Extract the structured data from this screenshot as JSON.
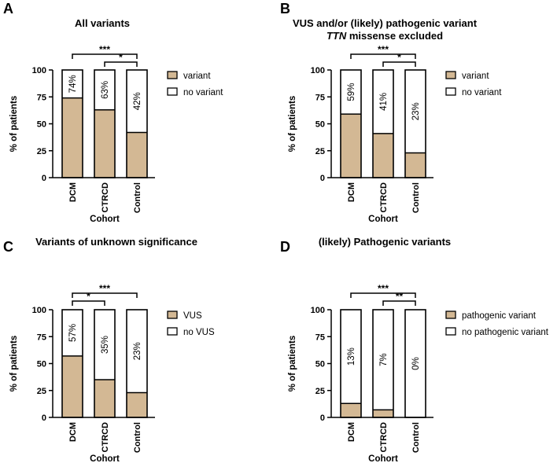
{
  "colors": {
    "variant": "#d3b894",
    "none": "#ffffff",
    "stroke": "#000000"
  },
  "chart_data": [
    {
      "type": "bar",
      "stacked": true,
      "panel": "A",
      "title_lines": [
        "All variants"
      ],
      "categories": [
        "DCM",
        "CTRCD",
        "Control"
      ],
      "series": [
        {
          "name": "variant",
          "values": [
            74,
            63,
            42
          ]
        },
        {
          "name": "no variant",
          "values": [
            26,
            37,
            58
          ]
        }
      ],
      "data_labels": [
        "74%",
        "63%",
        "42%"
      ],
      "xlabel": "Cohort",
      "ylabel": "% of patients",
      "ylim": [
        0,
        100
      ],
      "yticks": [
        0,
        25,
        50,
        75,
        100
      ],
      "legend": [
        "variant",
        "no variant"
      ],
      "legend_position": "right",
      "significance": [
        {
          "from": 0,
          "to": 2,
          "label": "***"
        },
        {
          "from": 1,
          "to": 2,
          "label": "*"
        }
      ]
    },
    {
      "type": "bar",
      "stacked": true,
      "panel": "B",
      "title_lines": [
        "VUS and/or (likely) pathogenic variant",
        "TTN missense excluded"
      ],
      "title_italic_word": "TTN",
      "categories": [
        "DCM",
        "CTRCD",
        "Control"
      ],
      "series": [
        {
          "name": "variant",
          "values": [
            59,
            41,
            23
          ]
        },
        {
          "name": "no variant",
          "values": [
            41,
            59,
            77
          ]
        }
      ],
      "data_labels": [
        "59%",
        "41%",
        "23%"
      ],
      "xlabel": "Cohort",
      "ylabel": "% of patients",
      "ylim": [
        0,
        100
      ],
      "yticks": [
        0,
        25,
        50,
        75,
        100
      ],
      "legend": [
        "variant",
        "no variant"
      ],
      "legend_position": "right",
      "significance": [
        {
          "from": 0,
          "to": 2,
          "label": "***"
        },
        {
          "from": 1,
          "to": 2,
          "label": "*"
        }
      ]
    },
    {
      "type": "bar",
      "stacked": true,
      "panel": "C",
      "title_lines": [
        "Variants of unknown significance"
      ],
      "categories": [
        "DCM",
        "CTRCD",
        "Control"
      ],
      "series": [
        {
          "name": "VUS",
          "values": [
            57,
            35,
            23
          ]
        },
        {
          "name": "no VUS",
          "values": [
            43,
            65,
            77
          ]
        }
      ],
      "data_labels": [
        "57%",
        "35%",
        "23%"
      ],
      "xlabel": "Cohort",
      "ylabel": "% of patients",
      "ylim": [
        0,
        100
      ],
      "yticks": [
        0,
        25,
        50,
        75,
        100
      ],
      "legend": [
        "VUS",
        "no VUS"
      ],
      "legend_position": "right",
      "significance": [
        {
          "from": 0,
          "to": 2,
          "label": "***"
        },
        {
          "from": 0,
          "to": 1,
          "label": "*"
        }
      ]
    },
    {
      "type": "bar",
      "stacked": true,
      "panel": "D",
      "title_lines": [
        "(likely) Pathogenic variants"
      ],
      "categories": [
        "DCM",
        "CTRCD",
        "Control"
      ],
      "series": [
        {
          "name": "pathogenic variant",
          "values": [
            13,
            7,
            0
          ]
        },
        {
          "name": "no pathogenic variant",
          "values": [
            87,
            93,
            100
          ]
        }
      ],
      "data_labels": [
        "13%",
        "7%",
        "0%"
      ],
      "xlabel": "Cohort",
      "ylabel": "% of patients",
      "ylim": [
        0,
        100
      ],
      "yticks": [
        0,
        25,
        50,
        75,
        100
      ],
      "legend": [
        "pathogenic variant",
        "no pathogenic variant"
      ],
      "legend_position": "right",
      "significance": [
        {
          "from": 0,
          "to": 2,
          "label": "***"
        },
        {
          "from": 1,
          "to": 2,
          "label": "**"
        }
      ]
    }
  ]
}
